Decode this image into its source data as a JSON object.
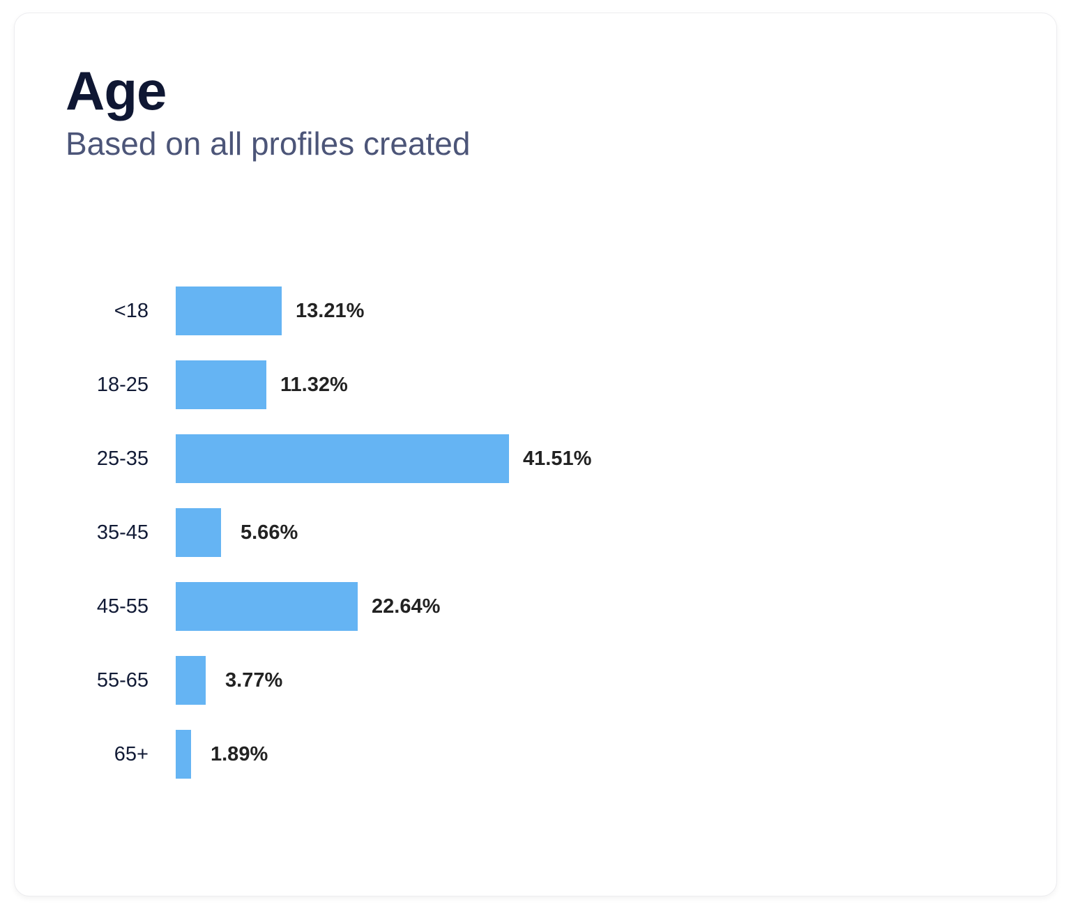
{
  "card": {
    "title": "Age",
    "subtitle": "Based on all profiles created"
  },
  "colors": {
    "bar": "#65b4f3",
    "title": "#0f1733",
    "subtitle": "#4c5578",
    "value_label": "#222222"
  },
  "chart_data": {
    "type": "bar",
    "orientation": "horizontal",
    "title": "Age",
    "subtitle": "Based on all profiles created",
    "xlabel": "",
    "ylabel": "",
    "categories": [
      "<18",
      "18-25",
      "25-35",
      "35-45",
      "45-55",
      "55-65",
      "65+"
    ],
    "values": [
      13.21,
      11.32,
      41.51,
      5.66,
      22.64,
      3.77,
      1.89
    ],
    "value_labels": [
      "13.21%",
      "11.32%",
      "41.51%",
      "5.66%",
      "22.64%",
      "3.77%",
      "1.89%"
    ],
    "unit": "%",
    "grid": false,
    "legend": "none",
    "axis_visible": false
  }
}
